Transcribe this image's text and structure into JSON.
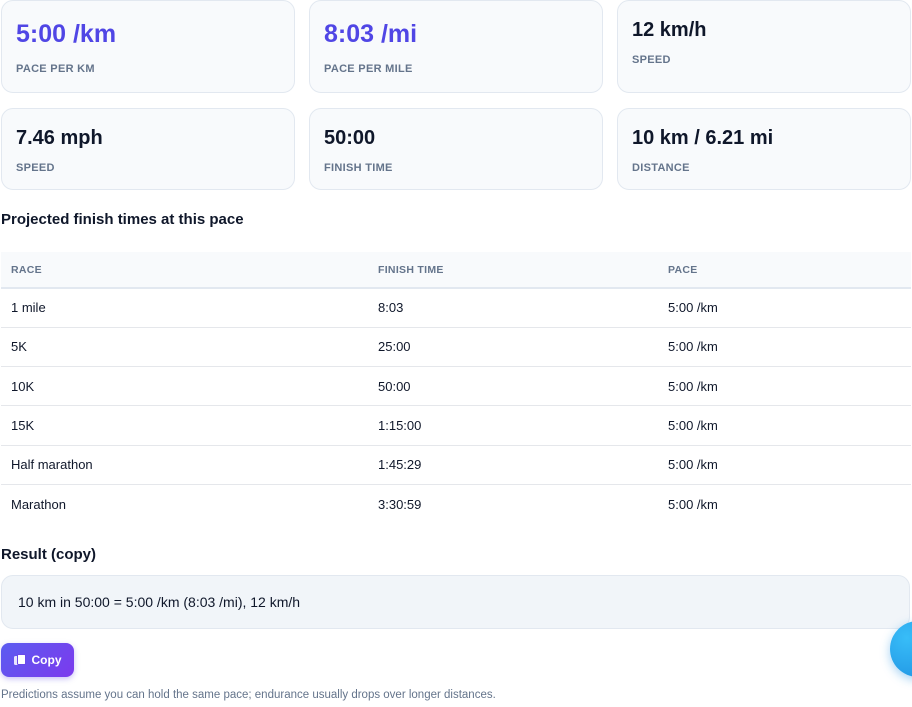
{
  "stats": [
    {
      "value": "5:00 /km",
      "label": "PACE PER KM"
    },
    {
      "value": "8:03 /mi",
      "label": "PACE PER MILE"
    },
    {
      "value": "12 km/h",
      "label": "SPEED"
    },
    {
      "value": "7.46 mph",
      "label": "SPEED"
    },
    {
      "value": "50:00",
      "label": "FINISH TIME"
    },
    {
      "value": "10 km / 6.21 mi",
      "label": "DISTANCE"
    }
  ],
  "projections": {
    "title": "Projected finish times at this pace",
    "headers": [
      "RACE",
      "FINISH TIME",
      "PACE"
    ],
    "rows": [
      [
        "1 mile",
        "8:03",
        "5:00 /km"
      ],
      [
        "5K",
        "25:00",
        "5:00 /km"
      ],
      [
        "10K",
        "50:00",
        "5:00 /km"
      ],
      [
        "15K",
        "1:15:00",
        "5:00 /km"
      ],
      [
        "Half marathon",
        "1:45:29",
        "5:00 /km"
      ],
      [
        "Marathon",
        "3:30:59",
        "5:00 /km"
      ]
    ]
  },
  "result": {
    "title": "Result (copy)",
    "text": "10 km in 50:00 = 5:00 /km (8:03 /mi), 12 km/h",
    "copy_label": "Copy",
    "copy_icon": "copy-icon"
  },
  "note": "Predictions assume you can hold the same pace; endurance usually drops over longer distances.",
  "colors": {
    "accent": "#5046e5",
    "button": "#6a48ea",
    "fab": "#1d8fe0"
  }
}
